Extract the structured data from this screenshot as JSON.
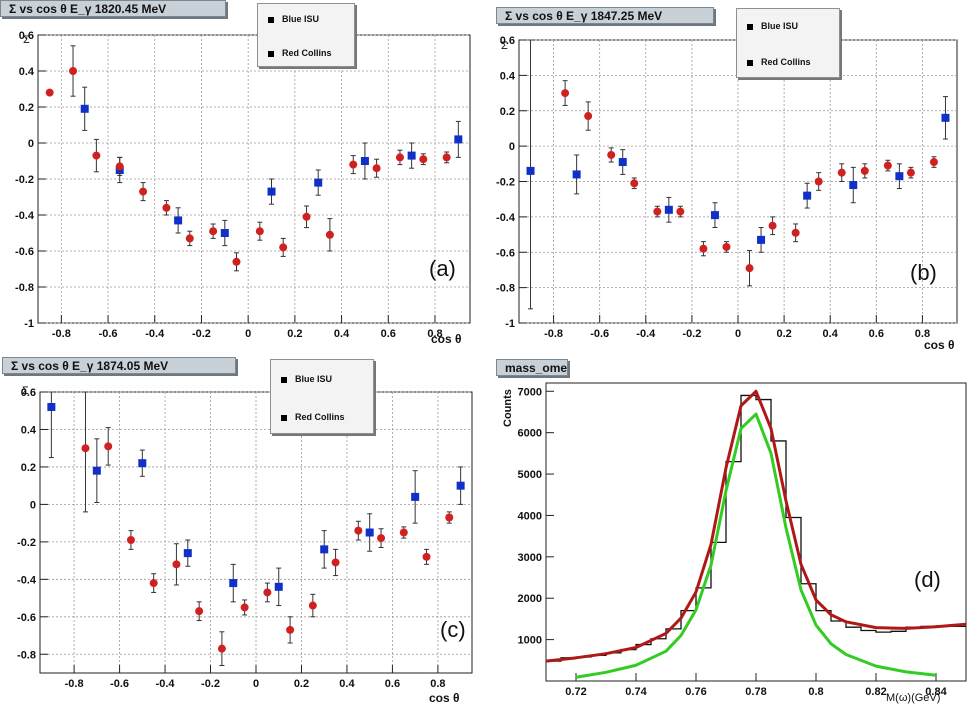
{
  "colors": {
    "blue": "#1030c8",
    "red": "#d02020",
    "fit_red": "#b01818",
    "fit_green": "#33cc22",
    "hist": "#111111"
  },
  "chart_data": [
    {
      "id": "a",
      "type": "scatter",
      "title": "Σ vs cos θ E_γ 1820.45 MeV",
      "xlabel": "cos θ",
      "ylabel": "Σ",
      "panel_label": "(a)",
      "xlim": [
        -0.9,
        0.95
      ],
      "ylim": [
        -1,
        0.6
      ],
      "xticks": [
        -0.8,
        -0.6,
        -0.4,
        -0.2,
        0,
        0.2,
        0.4,
        0.6,
        0.8
      ],
      "yticks": [
        -1,
        -0.8,
        -0.6,
        -0.4,
        -0.2,
        0,
        0.2,
        0.4,
        0.6
      ],
      "xtick_labels": [
        "-0.8",
        "-0.6",
        "-0.4",
        "-0.2",
        "0",
        "0.2",
        "0.4",
        "0.6",
        "0.8"
      ],
      "ytick_labels": [
        "-1",
        "-0.8",
        "-0.6",
        "-0.4",
        "-0.2",
        "0",
        "0.2",
        "0.4",
        "0.6"
      ],
      "grid": true,
      "legend": [
        "Blue ISU",
        "Red Collins"
      ],
      "series": [
        {
          "name": "Blue ISU",
          "marker": "square",
          "points": [
            [
              -0.7,
              0.19,
              0.12
            ],
            [
              -0.55,
              -0.15,
              0.07
            ],
            [
              -0.3,
              -0.43,
              0.07
            ],
            [
              -0.1,
              -0.5,
              0.07
            ],
            [
              0.1,
              -0.27,
              0.07
            ],
            [
              0.3,
              -0.22,
              0.07
            ],
            [
              0.5,
              -0.1,
              0.1
            ],
            [
              0.7,
              -0.07,
              0.07
            ],
            [
              0.9,
              0.02,
              0.1
            ]
          ]
        },
        {
          "name": "Red Collins",
          "marker": "circle",
          "points": [
            [
              -0.85,
              0.28,
              0
            ],
            [
              -0.75,
              0.4,
              0.14
            ],
            [
              -0.65,
              -0.07,
              0.09
            ],
            [
              -0.55,
              -0.13,
              0.05
            ],
            [
              -0.45,
              -0.27,
              0.05
            ],
            [
              -0.35,
              -0.36,
              0.04
            ],
            [
              -0.25,
              -0.53,
              0.04
            ],
            [
              -0.15,
              -0.49,
              0.04
            ],
            [
              -0.05,
              -0.66,
              0.05
            ],
            [
              0.05,
              -0.49,
              0.05
            ],
            [
              0.15,
              -0.58,
              0.05
            ],
            [
              0.25,
              -0.41,
              0.06
            ],
            [
              0.35,
              -0.51,
              0.09
            ],
            [
              0.45,
              -0.12,
              0.05
            ],
            [
              0.55,
              -0.14,
              0.05
            ],
            [
              0.65,
              -0.08,
              0.04
            ],
            [
              0.75,
              -0.09,
              0.03
            ],
            [
              0.85,
              -0.08,
              0.03
            ]
          ]
        }
      ]
    },
    {
      "id": "b",
      "type": "scatter",
      "title": "Σ vs cos θ E_γ 1847.25 MeV",
      "xlabel": "cos θ",
      "ylabel": "Σ",
      "panel_label": "(b)",
      "xlim": [
        -0.95,
        0.95
      ],
      "ylim": [
        -1,
        0.6
      ],
      "xticks": [
        -0.8,
        -0.6,
        -0.4,
        -0.2,
        0,
        0.2,
        0.4,
        0.6,
        0.8
      ],
      "yticks": [
        -1,
        -0.8,
        -0.6,
        -0.4,
        -0.2,
        0,
        0.2,
        0.4,
        0.6
      ],
      "xtick_labels": [
        "-0.8",
        "-0.6",
        "-0.4",
        "-0.2",
        "0",
        "0.2",
        "0.4",
        "0.6",
        "0.8"
      ],
      "ytick_labels": [
        "-1",
        "-0.8",
        "-0.6",
        "-0.4",
        "-0.2",
        "0",
        "0.2",
        "0.4",
        "0.6"
      ],
      "grid": true,
      "legend": [
        "Blue ISU",
        "Red Collins"
      ],
      "series": [
        {
          "name": "Blue ISU",
          "marker": "square",
          "points": [
            [
              -0.9,
              -0.14,
              0.78
            ],
            [
              -0.7,
              -0.16,
              0.11
            ],
            [
              -0.5,
              -0.09,
              0.07
            ],
            [
              -0.3,
              -0.36,
              0.07
            ],
            [
              -0.1,
              -0.39,
              0.07
            ],
            [
              0.1,
              -0.53,
              0.07
            ],
            [
              0.3,
              -0.28,
              0.07
            ],
            [
              0.5,
              -0.22,
              0.1
            ],
            [
              0.7,
              -0.17,
              0.07
            ],
            [
              0.9,
              0.16,
              0.12
            ]
          ]
        },
        {
          "name": "Red Collins",
          "marker": "circle",
          "points": [
            [
              -0.75,
              0.3,
              0.07
            ],
            [
              -0.65,
              0.17,
              0.08
            ],
            [
              -0.55,
              -0.05,
              0.04
            ],
            [
              -0.45,
              -0.21,
              0.03
            ],
            [
              -0.35,
              -0.37,
              0.03
            ],
            [
              -0.25,
              -0.37,
              0.03
            ],
            [
              -0.15,
              -0.58,
              0.04
            ],
            [
              -0.05,
              -0.57,
              0.03
            ],
            [
              0.05,
              -0.69,
              0.1
            ],
            [
              0.15,
              -0.45,
              0.05
            ],
            [
              0.25,
              -0.49,
              0.05
            ],
            [
              0.35,
              -0.2,
              0.05
            ],
            [
              0.45,
              -0.15,
              0.05
            ],
            [
              0.55,
              -0.14,
              0.04
            ],
            [
              0.65,
              -0.11,
              0.03
            ],
            [
              0.75,
              -0.15,
              0.03
            ],
            [
              0.85,
              -0.09,
              0.03
            ]
          ]
        }
      ]
    },
    {
      "id": "c",
      "type": "scatter",
      "title": "Σ vs cos θ E_γ 1874.05 MeV",
      "xlabel": "cos θ",
      "ylabel": "Σ",
      "panel_label": "(c)",
      "xlim": [
        -0.95,
        0.95
      ],
      "ylim": [
        -0.9,
        0.6
      ],
      "xticks": [
        -0.8,
        -0.6,
        -0.4,
        -0.2,
        0,
        0.2,
        0.4,
        0.6,
        0.8
      ],
      "yticks": [
        -0.8,
        -0.6,
        -0.4,
        -0.2,
        0,
        0.2,
        0.4,
        0.6
      ],
      "xtick_labels": [
        "-0.8",
        "-0.6",
        "-0.4",
        "-0.2",
        "0",
        "0.2",
        "0.4",
        "0.6",
        "0.8"
      ],
      "ytick_labels": [
        "-0.8",
        "-0.6",
        "-0.4",
        "-0.2",
        "0",
        "0.2",
        "0.4",
        "0.6"
      ],
      "grid": true,
      "legend": [
        "Blue ISU",
        "Red Collins"
      ],
      "series": [
        {
          "name": "Blue ISU",
          "marker": "square",
          "points": [
            [
              -0.9,
              0.52,
              0.27
            ],
            [
              -0.7,
              0.18,
              0.17
            ],
            [
              -0.5,
              0.22,
              0.07
            ],
            [
              -0.3,
              -0.26,
              0.07
            ],
            [
              -0.1,
              -0.42,
              0.1
            ],
            [
              0.1,
              -0.44,
              0.1
            ],
            [
              0.3,
              -0.24,
              0.1
            ],
            [
              0.5,
              -0.15,
              0.1
            ],
            [
              0.7,
              0.04,
              0.14
            ],
            [
              0.9,
              0.1,
              0.1
            ]
          ]
        },
        {
          "name": "Red Collins",
          "marker": "circle",
          "points": [
            [
              -0.75,
              0.3,
              0.34
            ],
            [
              -0.65,
              0.31,
              0.1
            ],
            [
              -0.55,
              -0.19,
              0.05
            ],
            [
              -0.45,
              -0.42,
              0.05
            ],
            [
              -0.35,
              -0.32,
              0.11
            ],
            [
              -0.25,
              -0.57,
              0.05
            ],
            [
              -0.15,
              -0.77,
              0.09
            ],
            [
              -0.05,
              -0.55,
              0.04
            ],
            [
              0.05,
              -0.47,
              0.05
            ],
            [
              0.15,
              -0.67,
              0.07
            ],
            [
              0.25,
              -0.54,
              0.06
            ],
            [
              0.35,
              -0.31,
              0.07
            ],
            [
              0.45,
              -0.14,
              0.05
            ],
            [
              0.55,
              -0.18,
              0.05
            ],
            [
              0.65,
              -0.15,
              0.03
            ],
            [
              0.75,
              -0.28,
              0.04
            ],
            [
              0.85,
              -0.07,
              0.03
            ]
          ]
        }
      ]
    },
    {
      "id": "d",
      "type": "line",
      "title": "mass_ome",
      "xlabel": "M(ω)(GeV)",
      "ylabel": "Counts",
      "panel_label": "(d)",
      "xlim": [
        0.71,
        0.85
      ],
      "ylim": [
        0,
        7200
      ],
      "xticks": [
        0.72,
        0.74,
        0.76,
        0.78,
        0.8,
        0.82,
        0.84
      ],
      "yticks": [
        1000,
        2000,
        3000,
        4000,
        5000,
        6000,
        7000
      ],
      "xtick_labels": [
        "0.72",
        "0.74",
        "0.76",
        "0.78",
        "0.8",
        "0.82",
        "0.84"
      ],
      "ytick_labels": [
        "1000",
        "2000",
        "3000",
        "4000",
        "5000",
        "6000",
        "7000"
      ],
      "grid": false,
      "histogram": {
        "bin_edges": [
          0.71,
          0.715,
          0.72,
          0.725,
          0.73,
          0.735,
          0.74,
          0.745,
          0.75,
          0.755,
          0.76,
          0.765,
          0.77,
          0.775,
          0.78,
          0.785,
          0.79,
          0.795,
          0.8,
          0.805,
          0.81,
          0.815,
          0.82,
          0.825,
          0.83,
          0.835,
          0.84,
          0.845,
          0.85
        ],
        "counts": [
          480,
          560,
          580,
          620,
          680,
          760,
          880,
          1020,
          1260,
          1700,
          2250,
          3350,
          5300,
          6900,
          6800,
          5800,
          3950,
          2350,
          1700,
          1450,
          1300,
          1220,
          1180,
          1200,
          1300,
          1320,
          1330,
          1320
        ]
      },
      "series": [
        {
          "name": "fit_total",
          "x": [
            0.71,
            0.72,
            0.73,
            0.74,
            0.75,
            0.755,
            0.76,
            0.765,
            0.77,
            0.775,
            0.78,
            0.785,
            0.79,
            0.795,
            0.8,
            0.805,
            0.81,
            0.82,
            0.83,
            0.84,
            0.85
          ],
          "y": [
            480,
            560,
            660,
            810,
            1150,
            1520,
            2150,
            3300,
            5150,
            6650,
            7000,
            6100,
            4350,
            2820,
            1960,
            1600,
            1430,
            1290,
            1270,
            1310,
            1370
          ]
        },
        {
          "name": "fit_signal",
          "x": [
            0.72,
            0.73,
            0.74,
            0.75,
            0.755,
            0.76,
            0.765,
            0.77,
            0.775,
            0.78,
            0.785,
            0.79,
            0.795,
            0.8,
            0.805,
            0.81,
            0.82,
            0.83,
            0.84
          ],
          "y": [
            90,
            210,
            380,
            720,
            1100,
            1720,
            2800,
            4600,
            6100,
            6450,
            5500,
            3700,
            2200,
            1350,
            900,
            640,
            360,
            220,
            140
          ]
        }
      ]
    }
  ]
}
